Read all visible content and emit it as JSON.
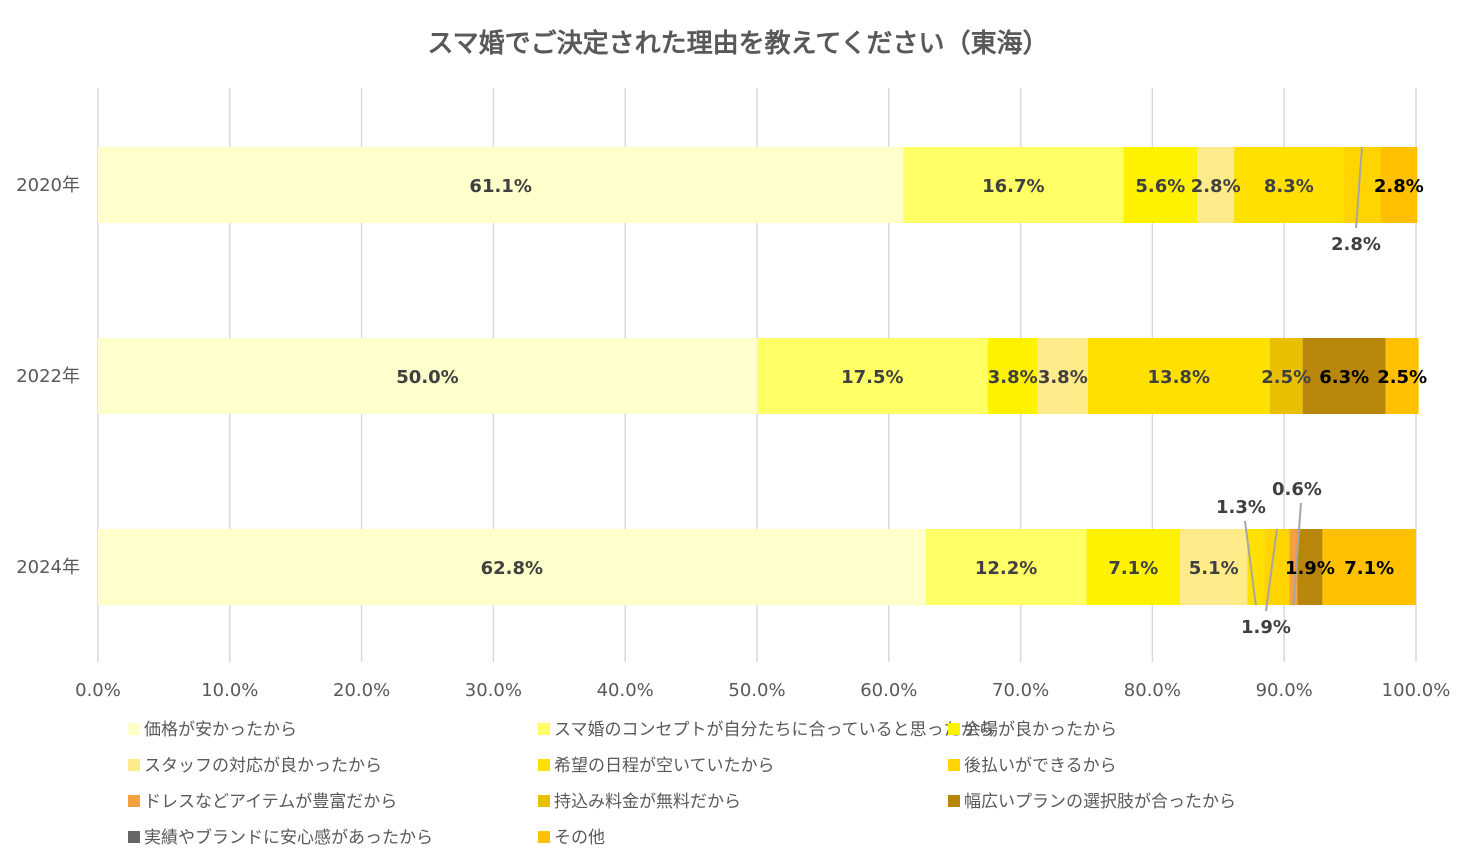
{
  "chart_data": {
    "type": "bar",
    "orientation": "horizontal",
    "stacked": true,
    "title": "スマ婚でご決定された理由を教えてください（東海）",
    "categories": [
      "2020年",
      "2022年",
      "2024年"
    ],
    "xlim": [
      0,
      100
    ],
    "x_ticks": [
      "0.0%",
      "10.0%",
      "20.0%",
      "30.0%",
      "40.0%",
      "50.0%",
      "60.0%",
      "70.0%",
      "80.0%",
      "90.0%",
      "100.0%"
    ],
    "grid": true,
    "legend_position": "bottom",
    "series": [
      {
        "name": "価格が安かったから",
        "color": "#FFFFCC",
        "values": [
          61.1,
          50.0,
          62.8
        ],
        "labels": [
          "61.1%",
          "50.0%",
          "62.8%"
        ]
      },
      {
        "name": "スマ婚のコンセプトが自分たちに合っていると思ったから",
        "color": "#FFFF66",
        "values": [
          16.7,
          17.5,
          12.2
        ],
        "labels": [
          "16.7%",
          "17.5%",
          "12.2%"
        ]
      },
      {
        "name": "会場が良かったから",
        "color": "#FFF200",
        "values": [
          5.6,
          3.8,
          7.1
        ],
        "labels": [
          "5.6%",
          "3.8%",
          "7.1%"
        ]
      },
      {
        "name": "スタッフの対応が良かったから",
        "color": "#FFEB8A",
        "values": [
          2.8,
          3.8,
          5.1
        ],
        "labels": [
          "2.8%",
          "3.8%",
          "5.1%"
        ]
      },
      {
        "name": "希望の日程が空いていたから",
        "color": "#FFE000",
        "values": [
          8.3,
          13.8,
          1.3
        ],
        "labels": [
          "8.3%",
          "13.8%",
          "1.3%"
        ]
      },
      {
        "name": "後払いができるから",
        "color": "#FFD400",
        "values": [
          2.8,
          0,
          1.9
        ],
        "labels": [
          "2.8%",
          "",
          "1.9%"
        ]
      },
      {
        "name": "ドレスなどアイテムが豊富だから",
        "color": "#F4A040",
        "values": [
          0,
          0,
          0.6
        ],
        "labels": [
          "",
          "",
          "0.6%"
        ]
      },
      {
        "name": "持込み料金が無料だから",
        "color": "#E8C000",
        "values": [
          0,
          2.5,
          0
        ],
        "labels": [
          "",
          "2.5%",
          ""
        ]
      },
      {
        "name": "幅広いプランの選択肢が合ったから",
        "color": "#B8860B",
        "values": [
          0,
          6.3,
          1.9
        ],
        "labels": [
          "",
          "6.3%",
          "1.9%"
        ]
      },
      {
        "name": "実績やブランドに安心感があったから",
        "color": "#666666",
        "values": [
          0,
          0,
          0
        ],
        "labels": [
          "",
          "",
          ""
        ]
      },
      {
        "name": "その他",
        "color": "#FFC000",
        "values": [
          2.8,
          2.5,
          7.1
        ],
        "labels": [
          "2.8%",
          "2.5%",
          "7.1%"
        ]
      }
    ]
  }
}
